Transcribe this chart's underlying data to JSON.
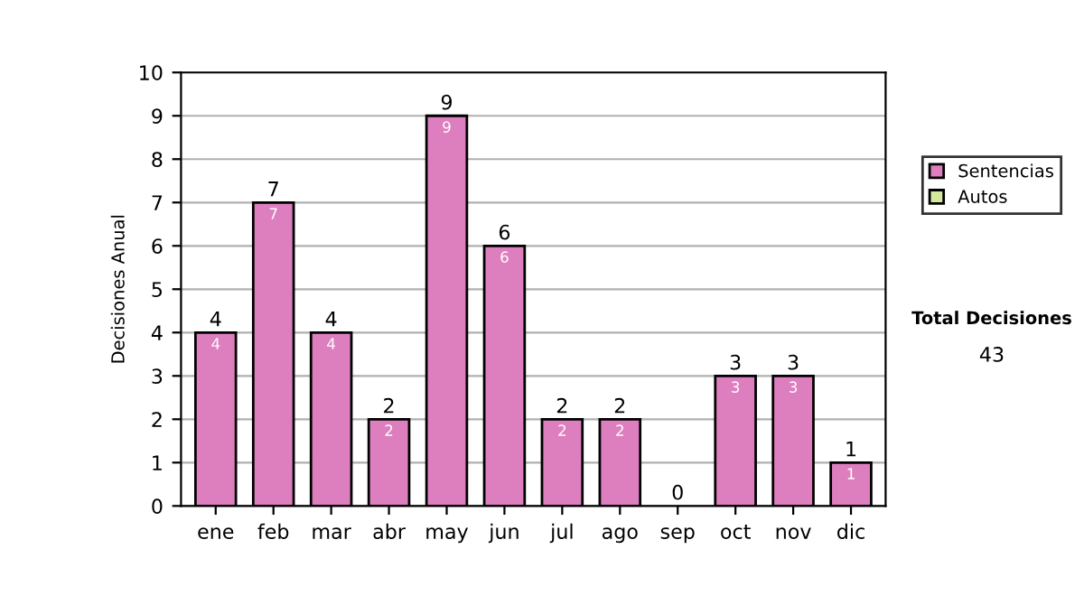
{
  "chart_data": {
    "type": "bar",
    "ylabel": "Decisiones Anual",
    "categories": [
      "ene",
      "feb",
      "mar",
      "abr",
      "may",
      "jun",
      "jul",
      "ago",
      "sep",
      "oct",
      "nov",
      "dic"
    ],
    "stacked": true,
    "series": [
      {
        "name": "Sentencias",
        "color": "#dd7fbf",
        "values": [
          4,
          7,
          4,
          2,
          9,
          6,
          2,
          2,
          0,
          3,
          3,
          1
        ],
        "value_labels": [
          "4",
          "7",
          "4",
          "2",
          "9",
          "6",
          "2",
          "2",
          null,
          "3",
          "3",
          "1"
        ]
      },
      {
        "name": "Autos",
        "color": "#d4e8a0",
        "values": [
          0,
          0,
          0,
          0,
          0,
          0,
          0,
          0,
          0,
          0,
          0,
          0
        ]
      }
    ],
    "totals": [
      "4",
      "7",
      "4",
      "2",
      "9",
      "6",
      "2",
      "2",
      "0",
      "3",
      "3",
      "1"
    ],
    "ylim": [
      0,
      10
    ],
    "yticks": [
      0,
      1,
      2,
      3,
      4,
      5,
      6,
      7,
      8,
      9,
      10
    ],
    "grid": "y",
    "legend": "right",
    "annotations": [
      "Total Decisiones",
      "43"
    ]
  }
}
